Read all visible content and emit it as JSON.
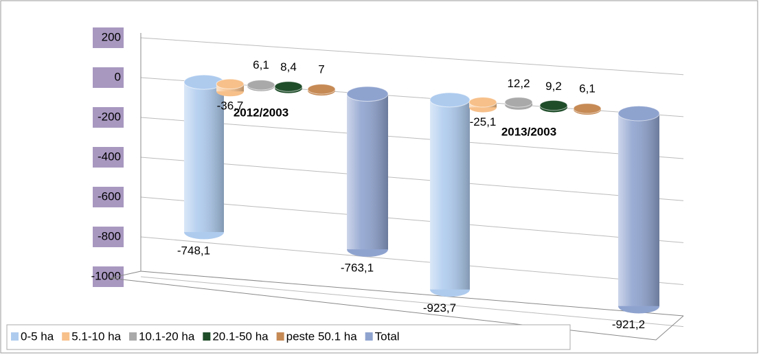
{
  "chart_data": {
    "type": "bar",
    "categories": [
      "2012/2003",
      "2013/2003"
    ],
    "series": [
      {
        "name": "0-5 ha",
        "color": "#aecbee",
        "values": [
          -748.1,
          -923.7
        ],
        "value_labels": [
          "-748,1",
          "-923,7"
        ]
      },
      {
        "name": "5.1-10 ha",
        "color": "#f7c08a",
        "values": [
          -36.7,
          -25.1
        ],
        "value_labels": [
          "-36,7",
          "-25,1"
        ]
      },
      {
        "name": "10.1-20 ha",
        "color": "#a9a9a9",
        "values": [
          6.1,
          12.2
        ],
        "value_labels": [
          "6,1",
          "12,2"
        ]
      },
      {
        "name": "20.1-50 ha",
        "color": "#1f4d2a",
        "values": [
          8.4,
          9.2
        ],
        "value_labels": [
          "8,4",
          "9,2"
        ]
      },
      {
        "name": "peste 50.1 ha",
        "color": "#c68a55",
        "values": [
          7,
          6.1
        ],
        "value_labels": [
          "7",
          "6,1"
        ]
      },
      {
        "name": "Total",
        "color": "#8fa3cf",
        "values": [
          -763.1,
          -921.2
        ],
        "value_labels": [
          "-763,1",
          "-921,2"
        ]
      }
    ],
    "ylim": [
      -1000,
      200
    ],
    "yticks": [
      200,
      0,
      -200,
      -400,
      -600,
      -800,
      -1000
    ],
    "grid": true
  }
}
